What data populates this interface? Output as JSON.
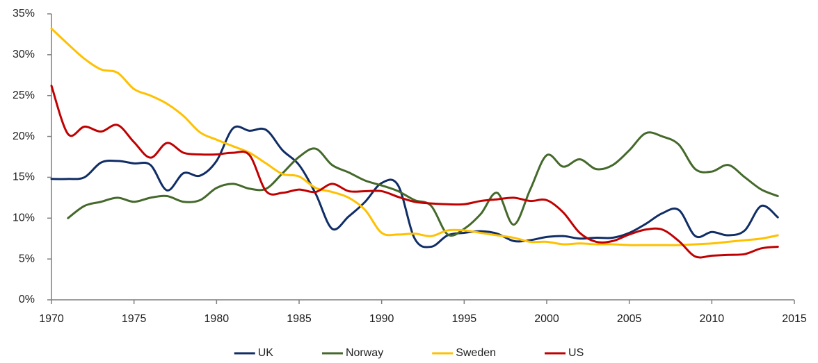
{
  "chart_data": {
    "type": "line",
    "x": [
      1970,
      1971,
      1972,
      1973,
      1974,
      1975,
      1976,
      1977,
      1978,
      1979,
      1980,
      1981,
      1982,
      1983,
      1984,
      1985,
      1986,
      1987,
      1988,
      1989,
      1990,
      1991,
      1992,
      1993,
      1994,
      1995,
      1996,
      1997,
      1998,
      1999,
      2000,
      2001,
      2002,
      2003,
      2004,
      2005,
      2006,
      2007,
      2008,
      2009,
      2010,
      2011,
      2012,
      2013,
      2014
    ],
    "series": [
      {
        "name": "UK",
        "color": "#102d66",
        "values": [
          14.8,
          14.8,
          15.0,
          16.8,
          17.0,
          16.7,
          16.5,
          13.4,
          15.5,
          15.2,
          17.0,
          21.0,
          20.7,
          20.8,
          18.3,
          16.5,
          13.0,
          8.7,
          10.2,
          12.0,
          14.3,
          14.0,
          7.5,
          6.5,
          7.9,
          8.2,
          8.4,
          8.1,
          7.2,
          7.3,
          7.7,
          7.8,
          7.5,
          7.6,
          7.6,
          8.2,
          9.3,
          10.6,
          11.0,
          7.8,
          8.3,
          7.9,
          8.5,
          11.5,
          10.1
        ]
      },
      {
        "name": "Norway",
        "color": "#44692b",
        "values": [
          null,
          10.0,
          11.5,
          12.0,
          12.5,
          12.0,
          12.5,
          12.7,
          12.0,
          12.2,
          13.7,
          14.2,
          13.6,
          13.6,
          15.5,
          17.5,
          18.5,
          16.5,
          15.6,
          14.6,
          14.0,
          13.3,
          12.2,
          11.5,
          8.0,
          8.7,
          10.5,
          13.1,
          9.2,
          13.5,
          17.7,
          16.3,
          17.2,
          16.0,
          16.5,
          18.3,
          20.4,
          20.0,
          19.0,
          16.0,
          15.7,
          16.5,
          15.0,
          13.5,
          12.7
        ]
      },
      {
        "name": "Sweden",
        "color": "#ffc000",
        "values": [
          33.2,
          31.3,
          29.5,
          28.2,
          27.8,
          25.8,
          25.0,
          24.0,
          22.5,
          20.5,
          19.6,
          18.8,
          18.0,
          16.7,
          15.4,
          15.1,
          13.7,
          13.2,
          12.5,
          11.0,
          8.2,
          8.0,
          8.1,
          7.8,
          8.5,
          8.5,
          8.2,
          7.9,
          7.6,
          7.1,
          7.1,
          6.8,
          6.9,
          6.8,
          6.8,
          6.7,
          6.7,
          6.7,
          6.7,
          6.8,
          6.9,
          7.1,
          7.3,
          7.5,
          7.9
        ]
      },
      {
        "name": "US",
        "color": "#c00000",
        "values": [
          26.2,
          20.3,
          21.2,
          20.6,
          21.4,
          19.3,
          17.4,
          19.2,
          18.0,
          17.8,
          17.8,
          18.0,
          17.7,
          13.3,
          13.1,
          13.5,
          13.2,
          14.2,
          13.3,
          13.3,
          13.3,
          12.6,
          12.0,
          11.8,
          11.7,
          11.7,
          12.1,
          12.3,
          12.5,
          12.1,
          12.2,
          10.7,
          8.2,
          7.1,
          7.2,
          8.0,
          8.6,
          8.6,
          7.2,
          5.3,
          5.4,
          5.5,
          5.6,
          6.3,
          6.5
        ]
      }
    ],
    "xlim": [
      1970,
      2015
    ],
    "xticks": [
      1970,
      1975,
      1980,
      1985,
      1990,
      1995,
      2000,
      2005,
      2010,
      2015
    ],
    "ylim": [
      0,
      35
    ],
    "yticks": [
      {
        "value": 0,
        "label": "0%"
      },
      {
        "value": 5,
        "label": "5%"
      },
      {
        "value": 10,
        "label": "10%"
      },
      {
        "value": 15,
        "label": "15%"
      },
      {
        "value": 20,
        "label": "20%"
      },
      {
        "value": 25,
        "label": "25%"
      },
      {
        "value": 30,
        "label": "30%"
      },
      {
        "value": 35,
        "label": "35%"
      }
    ],
    "grid": false,
    "smooth": true,
    "legend": "bottom"
  }
}
